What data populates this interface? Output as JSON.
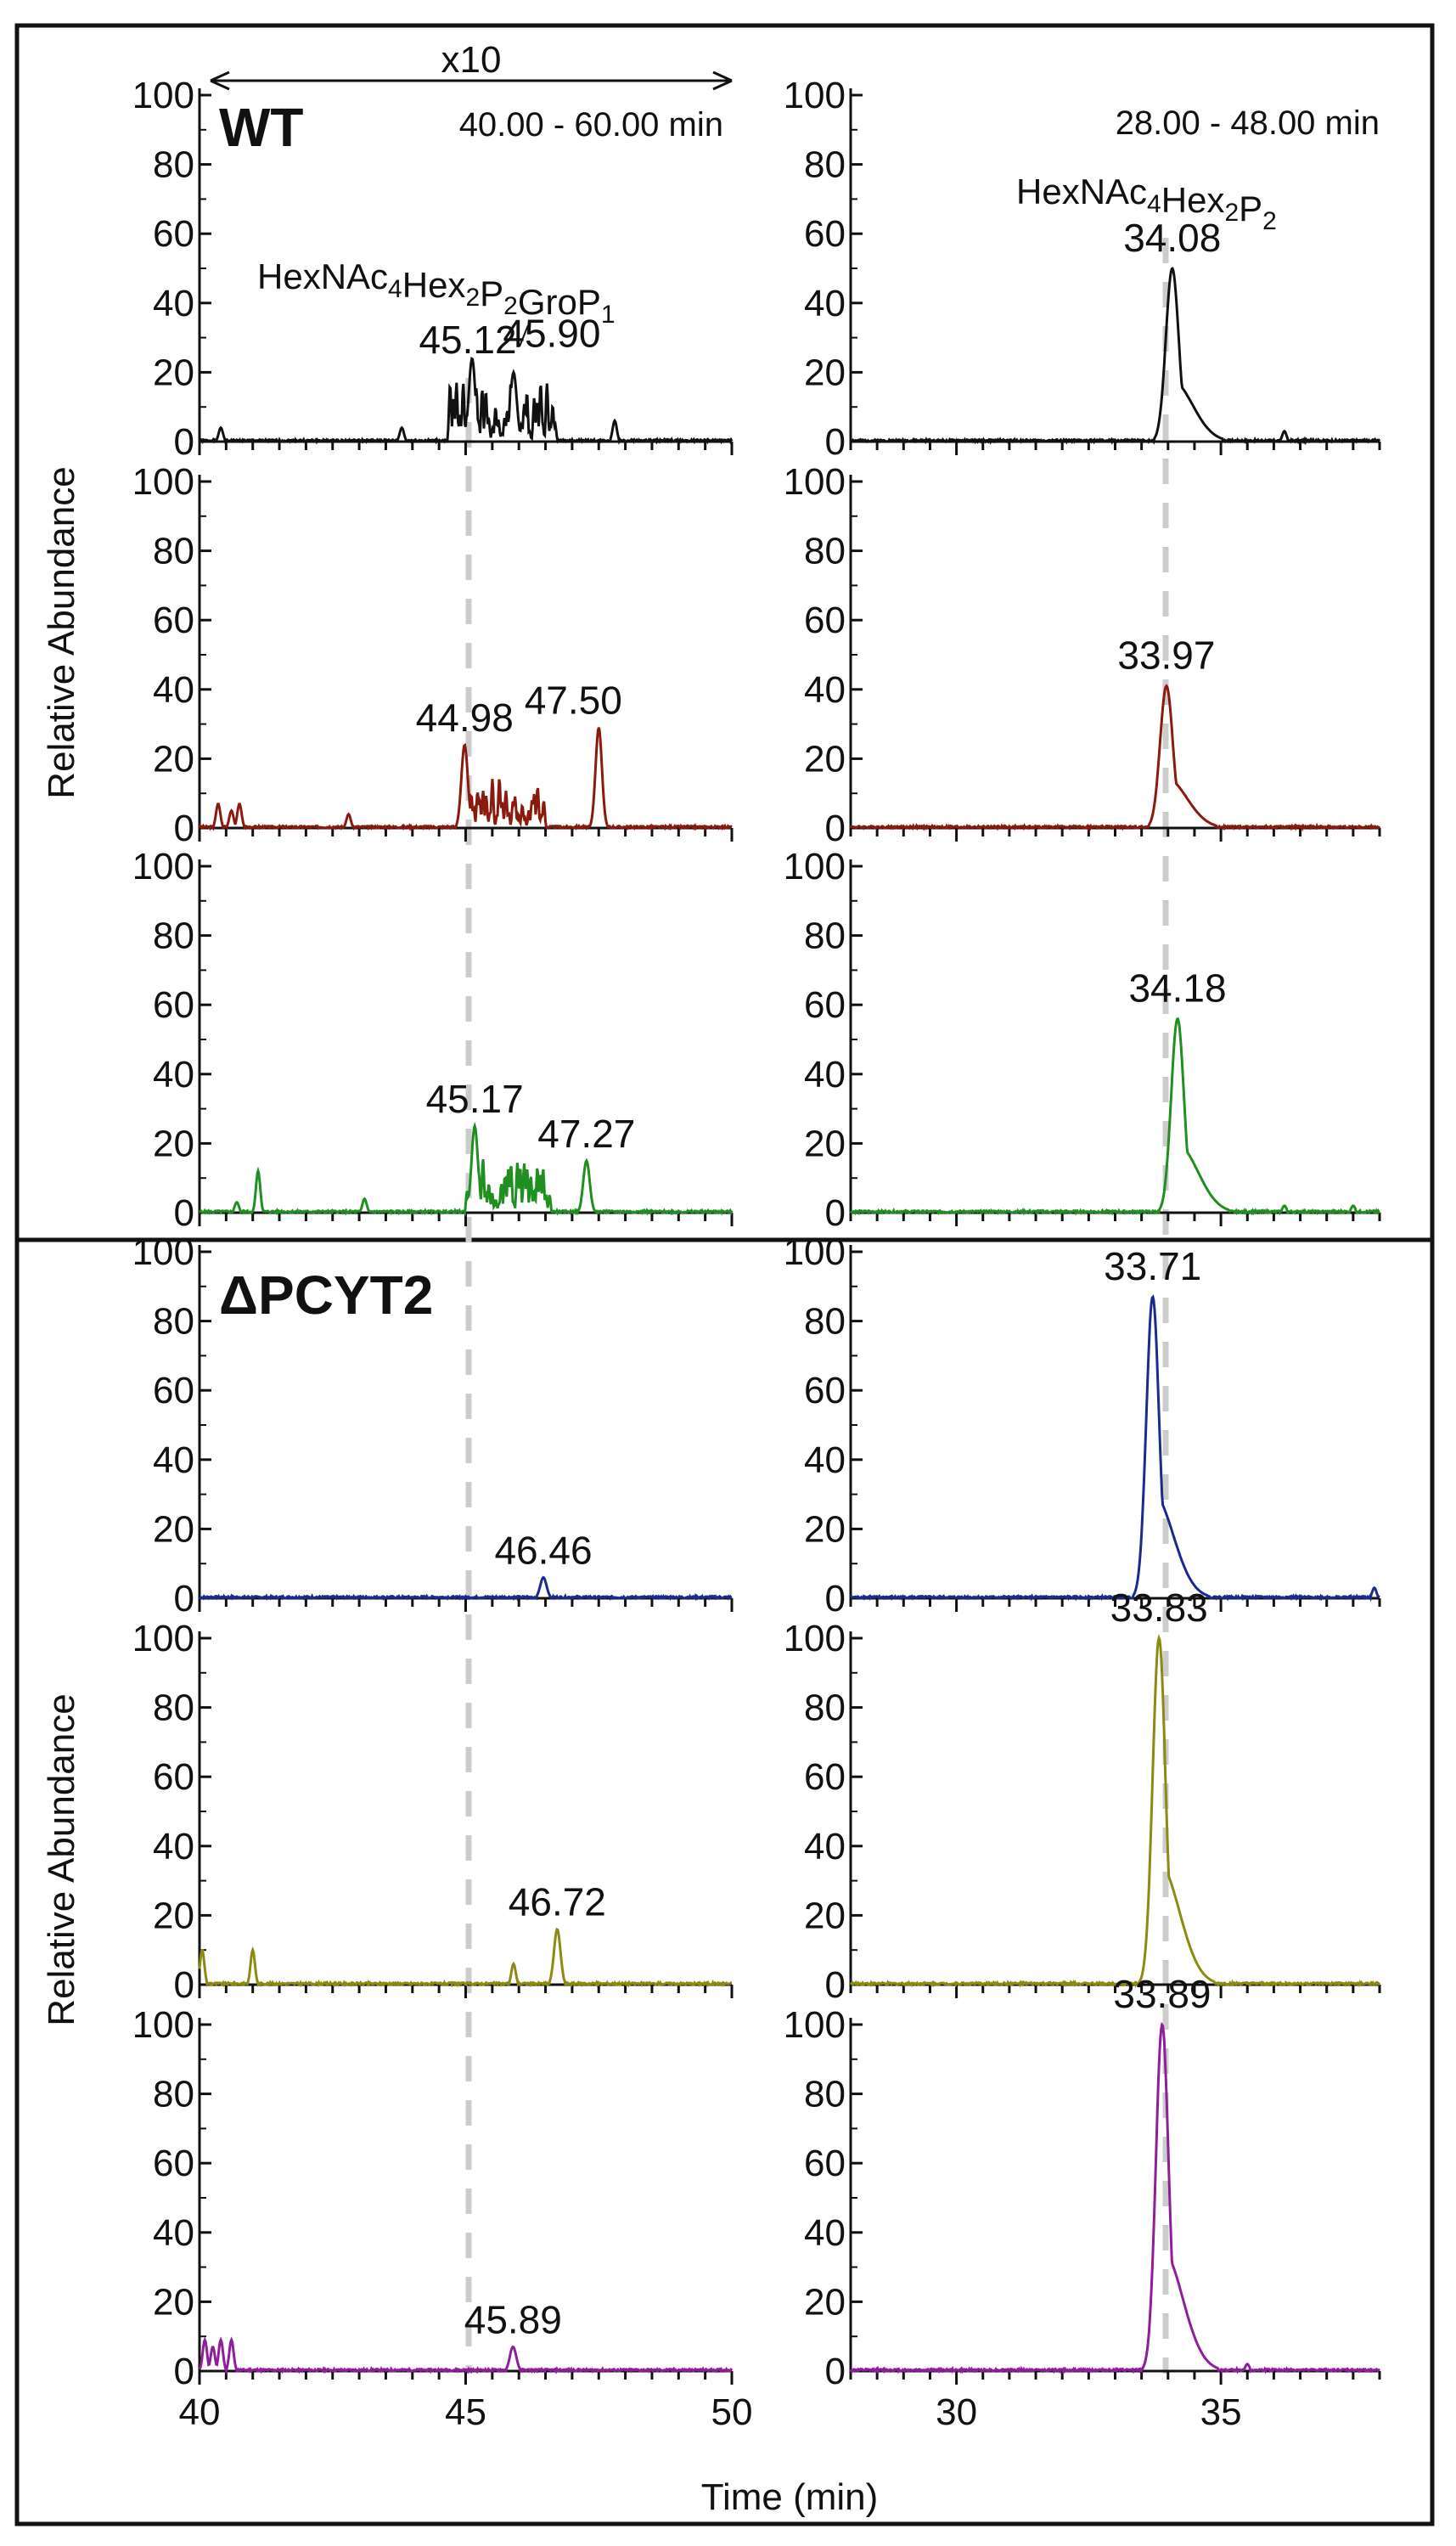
{
  "colors": {
    "frame": "#111111",
    "guide": "#cccccc",
    "wt1": "#111111",
    "wt2": "#8b1a0e",
    "wt3": "#1f8f1f",
    "ko1": "#1c2a8c",
    "ko2": "#8c8a10",
    "ko3": "#8e1e9a"
  },
  "labels": {
    "y_axis": "Relative Abundance",
    "x_axis": "Time (min)",
    "zoom": "x10",
    "left_range": "40.00 - 60.00 min",
    "right_range": "28.00 - 48.00 min",
    "left_compound": "HexNAc4Hex2P2GroP1",
    "right_compound": "HexNAc4Hex2P2"
  },
  "groups": [
    {
      "title": "WT"
    },
    {
      "title": "ΔPCYT2"
    }
  ],
  "chart_data": [
    {
      "type": "line",
      "group": "WT",
      "column": "left",
      "replicate": 1,
      "color": "wt1",
      "xlim": [
        40,
        50
      ],
      "ylim": [
        0,
        100
      ],
      "yticks": [
        0,
        20,
        40,
        60,
        80,
        100
      ],
      "xticks": [
        40,
        45,
        50
      ],
      "title": "WT",
      "peaks": [
        {
          "x": 45.12,
          "y": 24,
          "label": "45.12"
        },
        {
          "x": 45.9,
          "y": 20,
          "label": "45.90"
        }
      ],
      "noise": [
        {
          "x": 40.4,
          "h": 4
        },
        {
          "x": 43.8,
          "h": 4
        },
        {
          "x": 47.8,
          "h": 6
        }
      ],
      "cluster": {
        "from": 44.7,
        "to": 46.7,
        "max": 24,
        "seed": 3
      }
    },
    {
      "type": "line",
      "group": "WT",
      "column": "right",
      "replicate": 1,
      "color": "wt1",
      "xlim": [
        28,
        38
      ],
      "ylim": [
        0,
        100
      ],
      "yticks": [
        0,
        20,
        40,
        60,
        80,
        100
      ],
      "xticks": [
        30,
        35
      ],
      "peaks": [
        {
          "x": 34.08,
          "y": 50,
          "label": "34.08"
        }
      ],
      "noise": [
        {
          "x": 36.2,
          "h": 3
        }
      ]
    },
    {
      "type": "line",
      "group": "WT",
      "column": "left",
      "replicate": 2,
      "color": "wt2",
      "xlim": [
        40,
        50
      ],
      "ylim": [
        0,
        100
      ],
      "yticks": [
        0,
        20,
        40,
        60,
        80,
        100
      ],
      "xticks": [
        40,
        45,
        50
      ],
      "peaks": [
        {
          "x": 44.98,
          "y": 24,
          "label": "44.98"
        },
        {
          "x": 47.5,
          "y": 29,
          "label": "47.50"
        }
      ],
      "noise": [
        {
          "x": 40.35,
          "h": 7
        },
        {
          "x": 40.6,
          "h": 5
        },
        {
          "x": 40.75,
          "h": 7
        },
        {
          "x": 42.8,
          "h": 4
        }
      ],
      "cluster": {
        "from": 44.9,
        "to": 46.5,
        "max": 20,
        "seed": 7
      }
    },
    {
      "type": "line",
      "group": "WT",
      "column": "right",
      "replicate": 2,
      "color": "wt2",
      "xlim": [
        28,
        38
      ],
      "ylim": [
        0,
        100
      ],
      "yticks": [
        0,
        20,
        40,
        60,
        80,
        100
      ],
      "xticks": [
        30,
        35
      ],
      "peaks": [
        {
          "x": 33.97,
          "y": 41,
          "label": "33.97"
        }
      ],
      "noise": []
    },
    {
      "type": "line",
      "group": "WT",
      "column": "left",
      "replicate": 3,
      "color": "wt3",
      "xlim": [
        40,
        50
      ],
      "ylim": [
        0,
        100
      ],
      "yticks": [
        0,
        20,
        40,
        60,
        80,
        100
      ],
      "xticks": [
        40,
        45,
        50
      ],
      "peaks": [
        {
          "x": 45.17,
          "y": 25,
          "label": "45.17"
        },
        {
          "x": 47.27,
          "y": 15,
          "label": "47.27"
        }
      ],
      "noise": [
        {
          "x": 40.7,
          "h": 3
        },
        {
          "x": 41.1,
          "h": 12
        },
        {
          "x": 43.1,
          "h": 4
        }
      ],
      "cluster": {
        "from": 45.0,
        "to": 46.6,
        "max": 22,
        "seed": 11
      }
    },
    {
      "type": "line",
      "group": "WT",
      "column": "right",
      "replicate": 3,
      "color": "wt3",
      "xlim": [
        28,
        38
      ],
      "ylim": [
        0,
        100
      ],
      "yticks": [
        0,
        20,
        40,
        60,
        80,
        100
      ],
      "xticks": [
        30,
        35
      ],
      "peaks": [
        {
          "x": 34.18,
          "y": 56,
          "label": "34.18"
        }
      ],
      "noise": [
        {
          "x": 36.2,
          "h": 2
        },
        {
          "x": 37.5,
          "h": 2
        }
      ]
    },
    {
      "type": "line",
      "group": "ΔPCYT2",
      "column": "left",
      "replicate": 1,
      "color": "ko1",
      "xlim": [
        40,
        50
      ],
      "ylim": [
        0,
        100
      ],
      "yticks": [
        0,
        20,
        40,
        60,
        80,
        100
      ],
      "xticks": [
        40,
        45,
        50
      ],
      "title": "ΔPCYT2",
      "peaks": [
        {
          "x": 46.46,
          "y": 6,
          "label": "46.46"
        }
      ],
      "noise": []
    },
    {
      "type": "line",
      "group": "ΔPCYT2",
      "column": "right",
      "replicate": 1,
      "color": "ko1",
      "xlim": [
        28,
        38
      ],
      "ylim": [
        0,
        100
      ],
      "yticks": [
        0,
        20,
        40,
        60,
        80,
        100
      ],
      "xticks": [
        30,
        35
      ],
      "peaks": [
        {
          "x": 33.71,
          "y": 87,
          "label": "33.71"
        }
      ],
      "noise": [
        {
          "x": 37.9,
          "h": 3
        }
      ]
    },
    {
      "type": "line",
      "group": "ΔPCYT2",
      "column": "left",
      "replicate": 2,
      "color": "ko2",
      "xlim": [
        40,
        50
      ],
      "ylim": [
        0,
        100
      ],
      "yticks": [
        0,
        20,
        40,
        60,
        80,
        100
      ],
      "xticks": [
        40,
        45,
        50
      ],
      "peaks": [
        {
          "x": 46.72,
          "y": 16,
          "label": "46.72"
        }
      ],
      "noise": [
        {
          "x": 40.05,
          "h": 10
        },
        {
          "x": 41.0,
          "h": 10
        },
        {
          "x": 45.9,
          "h": 6
        }
      ]
    },
    {
      "type": "line",
      "group": "ΔPCYT2",
      "column": "right",
      "replicate": 2,
      "color": "ko2",
      "xlim": [
        28,
        38
      ],
      "ylim": [
        0,
        100
      ],
      "yticks": [
        0,
        20,
        40,
        60,
        80,
        100
      ],
      "xticks": [
        30,
        35
      ],
      "peaks": [
        {
          "x": 33.83,
          "y": 100,
          "label": "33.83"
        }
      ],
      "noise": []
    },
    {
      "type": "line",
      "group": "ΔPCYT2",
      "column": "left",
      "replicate": 3,
      "color": "ko3",
      "xlim": [
        40,
        50
      ],
      "ylim": [
        0,
        100
      ],
      "yticks": [
        0,
        20,
        40,
        60,
        80,
        100
      ],
      "xticks": [
        40,
        45,
        50
      ],
      "peaks": [
        {
          "x": 45.89,
          "y": 7,
          "label": "45.89"
        }
      ],
      "noise": [
        {
          "x": 40.1,
          "h": 9
        },
        {
          "x": 40.25,
          "h": 7
        },
        {
          "x": 40.4,
          "h": 9
        },
        {
          "x": 40.6,
          "h": 9
        }
      ]
    },
    {
      "type": "line",
      "group": "ΔPCYT2",
      "column": "right",
      "replicate": 3,
      "color": "ko3",
      "xlim": [
        28,
        38
      ],
      "ylim": [
        0,
        100
      ],
      "yticks": [
        0,
        20,
        40,
        60,
        80,
        100
      ],
      "xticks": [
        30,
        35
      ],
      "peaks": [
        {
          "x": 33.89,
          "y": 100,
          "label": "33.89"
        }
      ],
      "noise": [
        {
          "x": 35.5,
          "h": 2
        }
      ]
    }
  ]
}
